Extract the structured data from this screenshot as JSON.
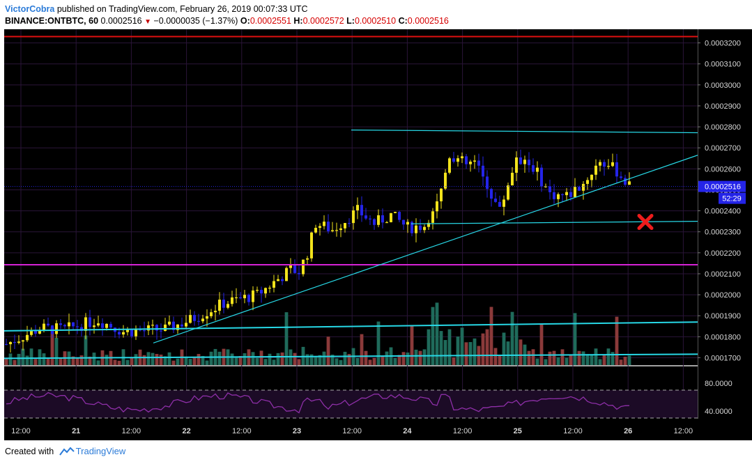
{
  "header": {
    "author": "VictorCobra",
    "published": "published on TradingView.com, February 26, 2019 00:07:33 UTC",
    "symbol": "BINANCE:ONTBTC, 60",
    "last": "0.0002516",
    "change": "−0.0000035 (−1.37%)",
    "o_label": "O:",
    "o": "0.0002551",
    "h_label": "H:",
    "h": "0.0002572",
    "l_label": "L:",
    "l": "0.0002510",
    "c_label": "C:",
    "c": "0.0002516"
  },
  "footer": {
    "created": "Created with",
    "brand": "TradingView"
  },
  "colors": {
    "background": "#000000",
    "up": "#f2e31c",
    "down": "#2424e8",
    "vol_up": "#1f6b5b",
    "vol_down": "#8b3a3a",
    "rsi": "#8e2fa8",
    "cyan": "#27d8e6",
    "red_line": "#e01010",
    "magenta_line": "#d622d6"
  },
  "chart_data": {
    "type": "candlestick",
    "ylim": [
      0.0001665,
      0.0003265
    ],
    "price_ticks": [
      "0.0003200",
      "0.0003100",
      "0.0003000",
      "0.0002900",
      "0.0002800",
      "0.0002700",
      "0.0002600",
      "0.0002500",
      "0.0002400",
      "0.0002300",
      "0.0002200",
      "0.0002100",
      "0.0002000",
      "0.0001900",
      "0.0001800",
      "0.0001700"
    ],
    "time_ticks": [
      "12:00",
      "21",
      "12:00",
      "22",
      "12:00",
      "23",
      "12:00",
      "24",
      "12:00",
      "25",
      "12:00",
      "26",
      "12:00"
    ],
    "last_price_label": "0.0002516",
    "countdown_label": "52:29",
    "rsi_ticks": [
      "80.0000",
      "40.0000"
    ],
    "rsi_bands": [
      70,
      30
    ],
    "red_resistance": 0.000323,
    "magenta_level": 0.0002143,
    "marker": "x",
    "volume_max": 0.000205
  }
}
